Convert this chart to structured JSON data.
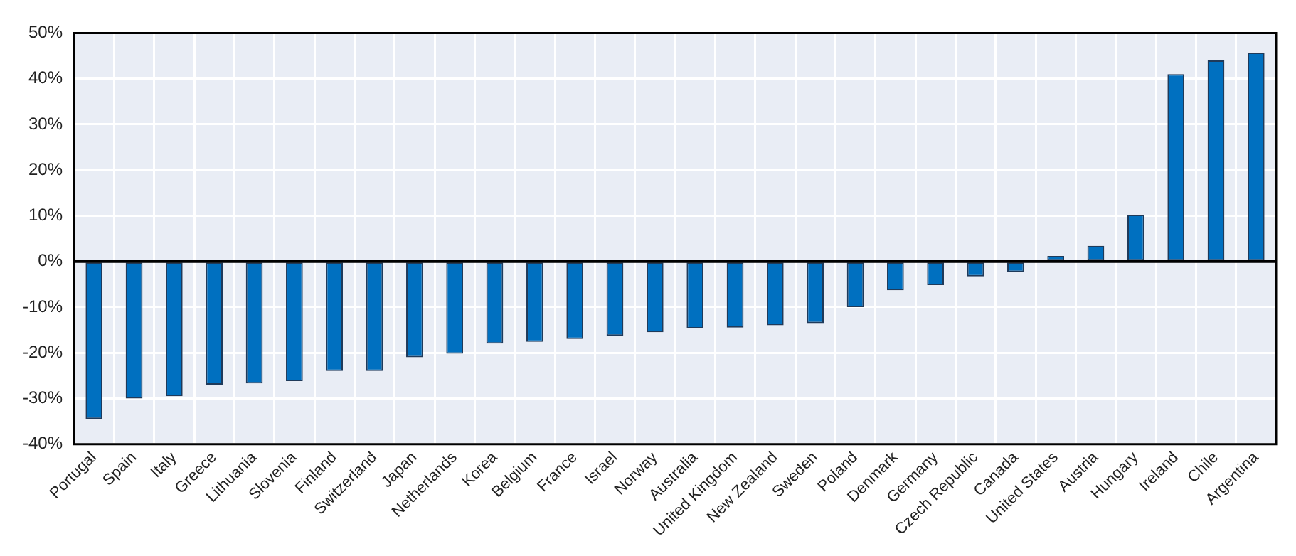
{
  "chart_data": {
    "type": "bar",
    "categories": [
      "Portugal",
      "Spain",
      "Italy",
      "Greece",
      "Lithuania",
      "Slovenia",
      "Finland",
      "Switzerland",
      "Japan",
      "Netherlands",
      "Korea",
      "Belgium",
      "France",
      "Israel",
      "Norway",
      "Australia",
      "United Kingdom",
      "New Zealand",
      "Sweden",
      "Poland",
      "Denmark",
      "Germany",
      "Czech Republic",
      "Canada",
      "United States",
      "Austria",
      "Hungary",
      "Ireland",
      "Chile",
      "Argentina"
    ],
    "values": [
      -34.5,
      -30,
      -29.5,
      -27,
      -26.7,
      -26.2,
      -24,
      -24,
      -21,
      -20.2,
      -18,
      -17.6,
      -17,
      -16.3,
      -15.5,
      -14.7,
      -14.5,
      -14,
      -13.5,
      -10,
      -6.3,
      -5.2,
      -3.3,
      -2.3,
      1.2,
      3.4,
      10.2,
      41,
      44,
      45.7
    ],
    "color": "#0070c0",
    "ylim": [
      -40,
      50
    ],
    "yticks": [
      {
        "value": -40,
        "label": "-40%"
      },
      {
        "value": -30,
        "label": "-30%"
      },
      {
        "value": -20,
        "label": "-20%"
      },
      {
        "value": -10,
        "label": "-10%"
      },
      {
        "value": 0,
        "label": "0%"
      },
      {
        "value": 10,
        "label": "10%"
      },
      {
        "value": 20,
        "label": "20%"
      },
      {
        "value": 30,
        "label": "30%"
      },
      {
        "value": 40,
        "label": "40%"
      },
      {
        "value": 50,
        "label": "50%"
      }
    ],
    "grid": true
  }
}
